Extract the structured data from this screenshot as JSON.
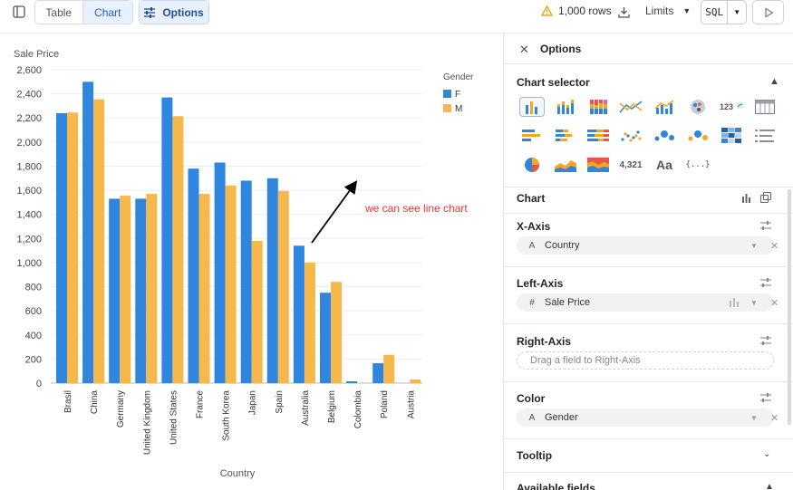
{
  "toolbar": {
    "table_label": "Table",
    "chart_label": "Chart",
    "options_label": "Options",
    "rows_label": "1,000 rows",
    "limits_label": "Limits",
    "sql_label": "SQL"
  },
  "colors": {
    "F": "#2e86de",
    "M": "#f6b84a",
    "accent": "#1f5fbf",
    "annotation": "#e53935"
  },
  "annotation": "we can see line chart",
  "chart_data": {
    "type": "bar",
    "ylabel": "Sale Price",
    "xlabel": "Country",
    "legend_title": "Gender",
    "legend_position": "top-right",
    "ylim": [
      0,
      2600
    ],
    "yticks": [
      "0",
      "200",
      "400",
      "600",
      "800",
      "1,000",
      "1,200",
      "1,400",
      "1,600",
      "1,800",
      "2,000",
      "2,200",
      "2,400",
      "2,600"
    ],
    "categories": [
      "Brasil",
      "China",
      "Germany",
      "United Kingdom",
      "United States",
      "France",
      "South Korea",
      "Japan",
      "Spain",
      "Australia",
      "Belgium",
      "Colombia",
      "Poland",
      "Austria"
    ],
    "series": [
      {
        "name": "F",
        "values": [
          2240,
          2500,
          1530,
          1530,
          2370,
          1780,
          1830,
          1680,
          1700,
          1140,
          750,
          15,
          165,
          0
        ]
      },
      {
        "name": "M",
        "values": [
          2245,
          2355,
          1555,
          1570,
          2215,
          1570,
          1640,
          1180,
          1595,
          1000,
          840,
          0,
          235,
          30
        ]
      }
    ]
  },
  "panel": {
    "title": "Options",
    "chart_selector_title": "Chart selector",
    "icons": [
      "bar-chart",
      "stacked-bar",
      "stacked-100-bar",
      "line-chart",
      "bar-line-combo",
      "map",
      "number-trend",
      "table",
      "horizontal-bar",
      "horizontal-stacked",
      "horizontal-100",
      "scatter",
      "bubble",
      "bubble-colored",
      "heatmap",
      "list",
      "pie",
      "area",
      "stacked-area",
      "big-number",
      "text",
      "json"
    ],
    "icon_texts": {
      "number_trend": "123",
      "big_number": "4,321",
      "text": "Aa",
      "json": "{...}"
    },
    "chart_section": "Chart",
    "x_axis": {
      "title": "X-Axis",
      "type_icon": "A",
      "field": "Country"
    },
    "left_axis": {
      "title": "Left-Axis",
      "type_icon": "#",
      "field": "Sale Price"
    },
    "right_axis": {
      "title": "Right-Axis",
      "placeholder": "Drag a field to Right-Axis"
    },
    "color": {
      "title": "Color",
      "type_icon": "A",
      "field": "Gender"
    },
    "tooltip": "Tooltip",
    "available_fields": "Available fields"
  }
}
